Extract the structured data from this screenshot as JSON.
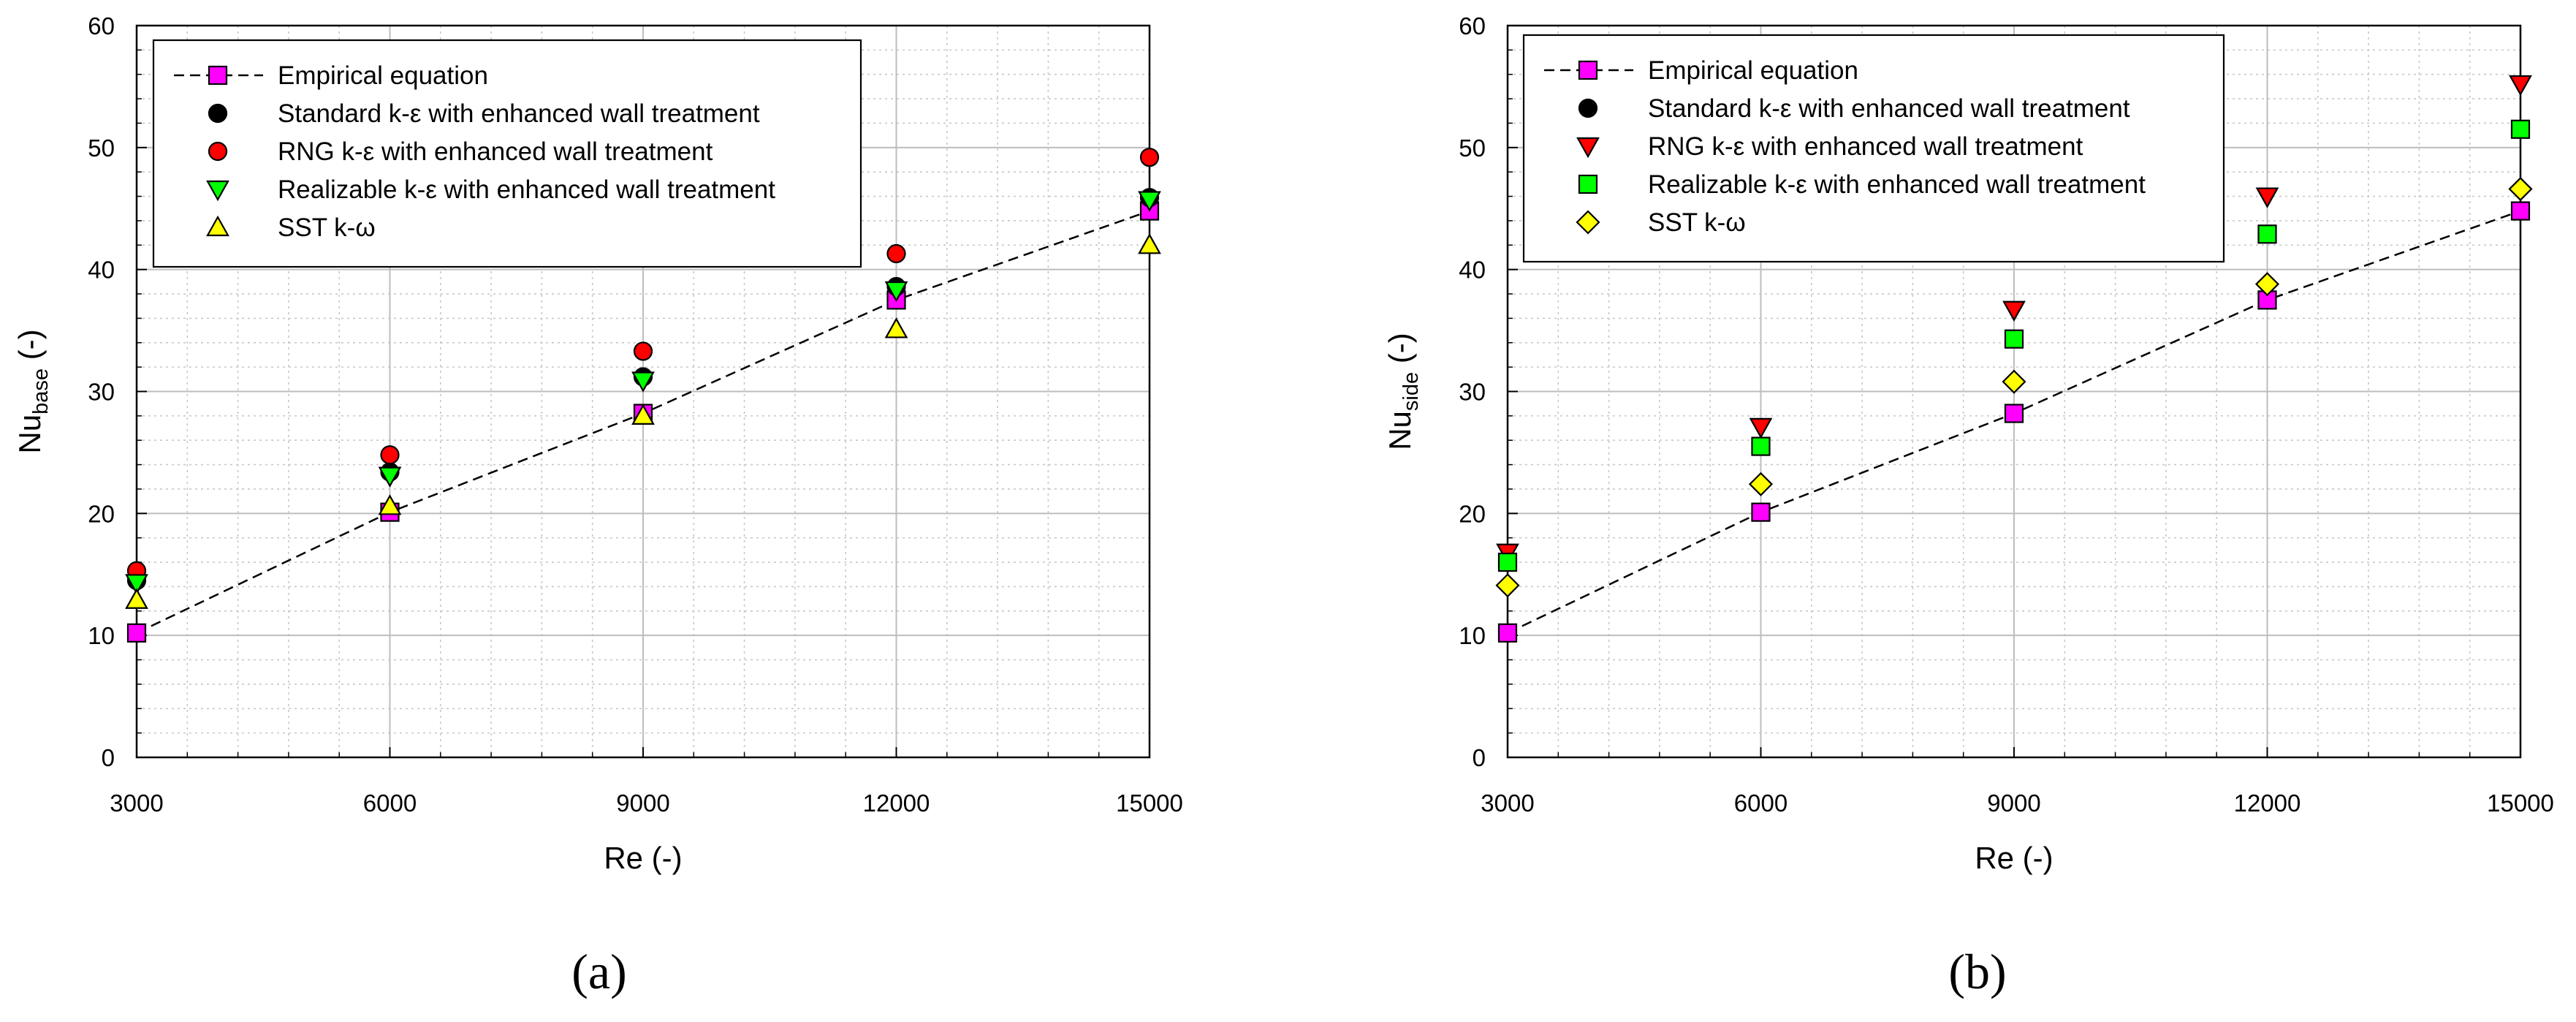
{
  "chart_data": [
    {
      "type": "scatter",
      "panel_label": "(a)",
      "xlabel": "Re (-)",
      "ylabel_main": "Nu",
      "ylabel_sub": "base",
      "ylabel_suffix": " (-)",
      "xlim": [
        3000,
        15000
      ],
      "ylim": [
        0,
        60
      ],
      "xticks": [
        3000,
        6000,
        9000,
        12000,
        15000
      ],
      "xtick_labels": [
        "3000",
        "6000",
        "9000",
        "12000",
        "15000"
      ],
      "yticks": [
        0,
        10,
        20,
        30,
        40,
        50,
        60
      ],
      "ytick_labels": [
        "0",
        "10",
        "20",
        "30",
        "40",
        "50",
        "60"
      ],
      "grid": true,
      "legend_position": "top-left",
      "x": [
        3000,
        6000,
        9000,
        12000,
        15000
      ],
      "series": [
        {
          "name": "Empirical equation",
          "values": [
            10.2,
            20.1,
            28.2,
            37.5,
            44.8
          ],
          "marker": "square",
          "color": "#ff00ff",
          "line": "dashed"
        },
        {
          "name": "Standard k-ε with enhanced wall treatment",
          "values": [
            14.5,
            23.4,
            31.2,
            38.6,
            45.9
          ],
          "marker": "circle",
          "color": "#000000"
        },
        {
          "name": "RNG k-ε with enhanced wall treatment",
          "values": [
            15.3,
            24.8,
            33.3,
            41.3,
            49.2
          ],
          "marker": "circle",
          "color": "#ff0000"
        },
        {
          "name": "Realizable k-ε with enhanced wall treatment",
          "values": [
            14.3,
            23.1,
            30.9,
            38.3,
            45.7
          ],
          "marker": "triangle-down",
          "color": "#00ff00"
        },
        {
          "name": "SST k-ω",
          "values": [
            12.9,
            20.6,
            28.0,
            35.1,
            42.0
          ],
          "marker": "triangle-up",
          "color": "#ffff00"
        }
      ]
    },
    {
      "type": "scatter",
      "panel_label": "(b)",
      "xlabel": "Re (-)",
      "ylabel_main": "Nu",
      "ylabel_sub": "side",
      "ylabel_suffix": " (-)",
      "xlim": [
        3000,
        15000
      ],
      "ylim": [
        0,
        60
      ],
      "xticks": [
        3000,
        6000,
        9000,
        12000,
        15000
      ],
      "xtick_labels": [
        "3000",
        "6000",
        "9000",
        "12000",
        "15000"
      ],
      "yticks": [
        0,
        10,
        20,
        30,
        40,
        50,
        60
      ],
      "ytick_labels": [
        "0",
        "10",
        "20",
        "30",
        "40",
        "50",
        "60"
      ],
      "grid": true,
      "legend_position": "top-left",
      "x": [
        3000,
        6000,
        9000,
        12000,
        15000
      ],
      "series": [
        {
          "name": "Empirical equation",
          "values": [
            10.2,
            20.1,
            28.2,
            37.5,
            44.8
          ],
          "marker": "square",
          "color": "#ff00ff",
          "line": "dashed"
        },
        {
          "name": "Standard k-ε with enhanced wall treatment",
          "values": [],
          "marker": "circle",
          "color": "#000000"
        },
        {
          "name": "RNG k-ε with enhanced wall treatment",
          "values": [
            16.8,
            27.1,
            36.7,
            46.0,
            55.2
          ],
          "marker": "triangle-down",
          "color": "#ff0000"
        },
        {
          "name": "Realizable k-ε with enhanced wall treatment",
          "values": [
            16.0,
            25.5,
            34.3,
            42.9,
            51.5
          ],
          "marker": "square",
          "color": "#00ff00"
        },
        {
          "name": "SST k-ω",
          "values": [
            14.1,
            22.4,
            30.8,
            38.8,
            46.6
          ],
          "marker": "diamond",
          "color": "#ffff00"
        }
      ]
    }
  ]
}
